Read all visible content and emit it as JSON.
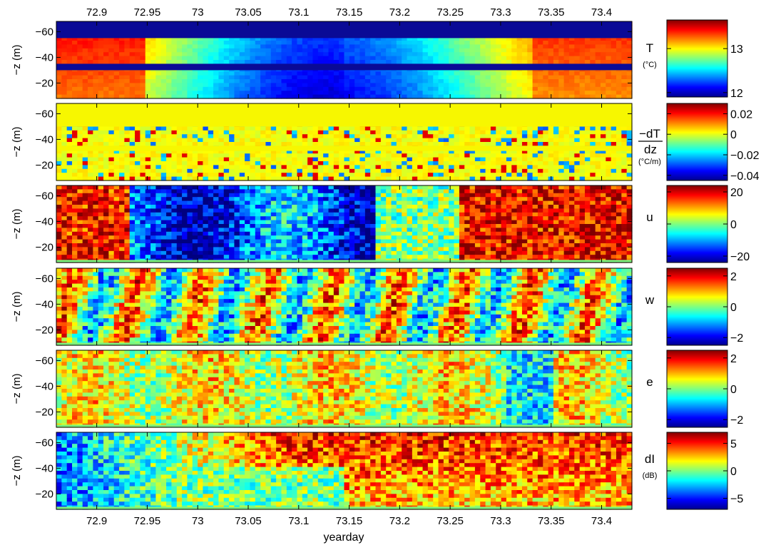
{
  "chart_data": {
    "type": "heatmap",
    "xlabel": "yearday",
    "xlim": [
      72.86,
      73.43
    ],
    "x_ticks": [
      {
        "v": 72.9,
        "label": "72.9"
      },
      {
        "v": 72.95,
        "label": "72.95"
      },
      {
        "v": 73.0,
        "label": "73"
      },
      {
        "v": 73.05,
        "label": "73.05"
      },
      {
        "v": 73.1,
        "label": "73.1"
      },
      {
        "v": 73.15,
        "label": "73.15"
      },
      {
        "v": 73.2,
        "label": "73.2"
      },
      {
        "v": 73.25,
        "label": "73.25"
      },
      {
        "v": 73.3,
        "label": "73.3"
      },
      {
        "v": 73.35,
        "label": "73.35"
      },
      {
        "v": 73.4,
        "label": "73.4"
      }
    ],
    "ylabel": "−z (m)",
    "ylim": [
      -8,
      -68
    ],
    "y_ticks": [
      {
        "v": -60,
        "label": "−60"
      },
      {
        "v": -40,
        "label": "−40"
      },
      {
        "v": -20,
        "label": "−20"
      }
    ],
    "colormap": "jet",
    "panels": [
      {
        "id": "T",
        "label_lines": [
          "T"
        ],
        "units_lines": [
          "(°C)"
        ],
        "clim": [
          11.9,
          13.65
        ],
        "colorbar_ticks": [
          {
            "v": 13,
            "label": "13"
          },
          {
            "v": 12,
            "label": "12"
          }
        ],
        "blank_bands": [
          [
            -55,
            -69
          ],
          [
            -30,
            -35
          ]
        ]
      },
      {
        "id": "dTdz",
        "label_lines": [
          "−dT",
          "dz"
        ],
        "units_lines": [
          "(°C/m)"
        ],
        "clim": [
          -0.045,
          0.03
        ],
        "colorbar_ticks": [
          {
            "v": 0.02,
            "label": "0.02"
          },
          {
            "v": 0,
            "label": "0"
          },
          {
            "v": -0.02,
            "label": "−0.02"
          },
          {
            "v": -0.04,
            "label": "−0.04"
          }
        ],
        "blank_bands": [
          [
            -50,
            -69
          ],
          [
            -31,
            -35
          ]
        ]
      },
      {
        "id": "u",
        "label_lines": [
          "u"
        ],
        "units_lines": [],
        "clim": [
          -24,
          24
        ],
        "colorbar_ticks": [
          {
            "v": 20,
            "label": "20"
          },
          {
            "v": 0,
            "label": "0"
          },
          {
            "v": -20,
            "label": "−20"
          }
        ],
        "blank_bands": [
          [
            -8,
            -10
          ]
        ]
      },
      {
        "id": "w",
        "label_lines": [
          "w"
        ],
        "units_lines": [],
        "clim": [
          -2.5,
          2.5
        ],
        "colorbar_ticks": [
          {
            "v": 2,
            "label": "2"
          },
          {
            "v": 0,
            "label": "0"
          },
          {
            "v": -2,
            "label": "−2"
          }
        ],
        "blank_bands": [
          [
            -8,
            -10
          ]
        ]
      },
      {
        "id": "e",
        "label_lines": [
          "e"
        ],
        "units_lines": [],
        "clim": [
          -2.5,
          2.5
        ],
        "colorbar_ticks": [
          {
            "v": 2,
            "label": "2"
          },
          {
            "v": 0,
            "label": "0"
          },
          {
            "v": -2,
            "label": "−2"
          }
        ],
        "blank_bands": [
          [
            -8,
            -10
          ]
        ]
      },
      {
        "id": "dI",
        "label_lines": [
          "dI"
        ],
        "units_lines": [
          "(dB)"
        ],
        "clim": [
          -7,
          7
        ],
        "colorbar_ticks": [
          {
            "v": 5,
            "label": "5"
          },
          {
            "v": 0,
            "label": "0"
          },
          {
            "v": -5,
            "label": "−5"
          }
        ],
        "blank_bands": [
          [
            -8,
            -10
          ]
        ]
      }
    ]
  }
}
